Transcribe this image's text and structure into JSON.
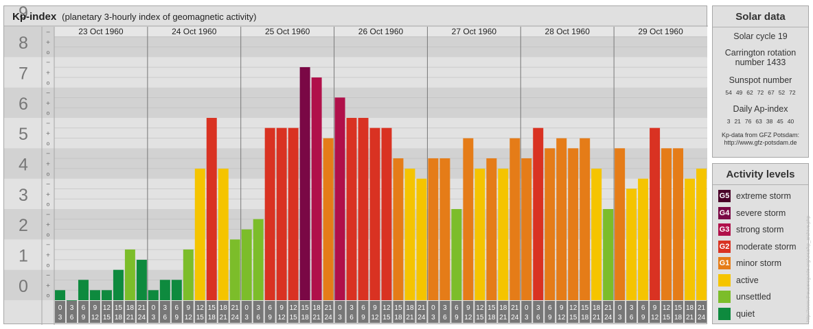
{
  "header": {
    "title": "Kp-index",
    "subtitle": "(planetary 3-hourly index of geomagnetic activity)"
  },
  "chart_data": {
    "type": "bar",
    "ylim": [
      0,
      9
    ],
    "y_ticks": [
      "0",
      "1",
      "2",
      "3",
      "4",
      "5",
      "6",
      "7",
      "8",
      "9"
    ],
    "minor_marks": [
      "+",
      "o",
      "−"
    ],
    "days": [
      "23 Oct 1960",
      "24 Oct 1960",
      "25 Oct 1960",
      "26 Oct 1960",
      "27 Oct 1960",
      "28 Oct 1960",
      "29 Oct 1960"
    ],
    "interval_labels": [
      [
        "0",
        "3"
      ],
      [
        "3",
        "6"
      ],
      [
        "6",
        "9"
      ],
      [
        "9",
        "12"
      ],
      [
        "12",
        "15"
      ],
      [
        "15",
        "18"
      ],
      [
        "18",
        "21"
      ],
      [
        "21",
        "24"
      ]
    ],
    "values": [
      [
        0.33,
        0.0,
        0.67,
        0.33,
        0.33,
        1.0,
        1.67,
        1.33
      ],
      [
        0.33,
        0.67,
        0.67,
        1.67,
        4.33,
        6.0,
        4.33,
        2.0
      ],
      [
        2.33,
        2.67,
        5.67,
        5.67,
        5.67,
        7.67,
        7.33,
        5.33
      ],
      [
        6.67,
        6.0,
        6.0,
        5.67,
        5.67,
        4.67,
        4.33,
        4.0
      ],
      [
        4.67,
        4.67,
        3.0,
        5.33,
        4.33,
        4.67,
        4.33,
        5.33
      ],
      [
        4.67,
        5.67,
        5.0,
        5.33,
        5.0,
        5.33,
        4.33,
        3.0
      ],
      [
        5.0,
        3.67,
        4.0,
        5.67,
        5.0,
        5.0,
        4.0,
        4.33
      ]
    ]
  },
  "colors": {
    "quiet": "#0e8a3e",
    "unsettled": "#7cbd2a",
    "active": "#f5c400",
    "G1": "#e57c18",
    "G2": "#d93222",
    "G3": "#b0104a",
    "G4": "#7a0845",
    "G5": "#4a0028"
  },
  "solar": {
    "title": "Solar data",
    "cycle": "Solar cycle 19",
    "carrington_1": "Carrington rotation",
    "carrington_2": "number 1433",
    "sunspot_label": "Sunspot number",
    "sunspot_values": [
      "54",
      "49",
      "62",
      "72",
      "67",
      "52",
      "72"
    ],
    "ap_label": "Daily Ap-index",
    "ap_values": [
      "3",
      "21",
      "76",
      "63",
      "38",
      "45",
      "40"
    ],
    "source_1": "Kp-data from GFZ Potsdam:",
    "source_2": "http://www.gfz-potsdam.de"
  },
  "legend": {
    "title": "Activity levels",
    "items": [
      {
        "badge": "G5",
        "label": "extreme storm",
        "color_key": "G5"
      },
      {
        "badge": "G4",
        "label": "severe storm",
        "color_key": "G4"
      },
      {
        "badge": "G3",
        "label": "strong storm",
        "color_key": "G3"
      },
      {
        "badge": "G2",
        "label": "moderate storm",
        "color_key": "G2"
      },
      {
        "badge": "G1",
        "label": "minor storm",
        "color_key": "G1"
      },
      {
        "badge": "",
        "label": "active",
        "color_key": "active"
      },
      {
        "badge": "",
        "label": "unsettled",
        "color_key": "unsettled"
      },
      {
        "badge": "",
        "label": "quiet",
        "color_key": "quiet"
      }
    ]
  },
  "credit": "http://www.theusersguide.org/ursa/kp_archive.php"
}
